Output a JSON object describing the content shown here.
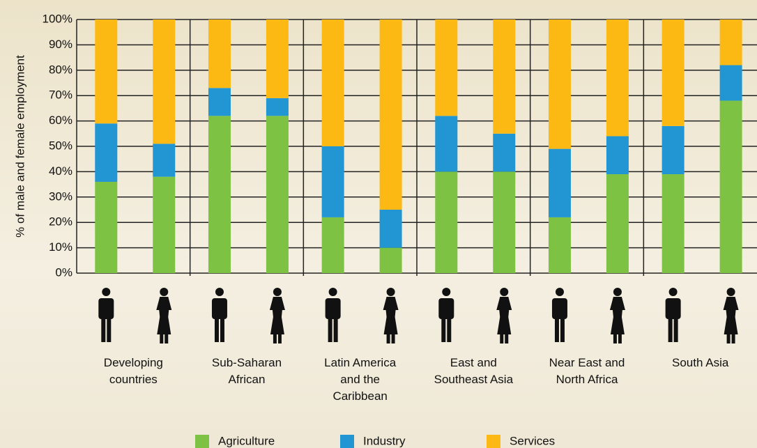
{
  "chart_data": {
    "type": "stacked_bar",
    "y_label": "% of male and female employment",
    "categories": [
      "Developing\ncountries",
      "Sub-Saharan\nAfrican",
      "Latin America\nand the\nCaribbean",
      "East and\nSoutheast Asia",
      "Near East and\nNorth Africa",
      "South Asia"
    ],
    "series": [
      {
        "name": "Agriculture",
        "color": "#7dc242",
        "values": [
          [
            36,
            38
          ],
          [
            62,
            62
          ],
          [
            22,
            10
          ],
          [
            40,
            40
          ],
          [
            22,
            39
          ],
          [
            39,
            68
          ]
        ]
      },
      {
        "name": "Industry",
        "color": "#2196d3",
        "values": [
          [
            23,
            13
          ],
          [
            11,
            7
          ],
          [
            28,
            15
          ],
          [
            22,
            15
          ],
          [
            27,
            15
          ],
          [
            19,
            14
          ]
        ]
      },
      {
        "name": "Services",
        "color": "#fdb913",
        "values": [
          [
            41,
            49
          ],
          [
            27,
            31
          ],
          [
            50,
            75
          ],
          [
            38,
            45
          ],
          [
            51,
            46
          ],
          [
            42,
            18
          ]
        ]
      }
    ],
    "ylim": [
      0,
      100
    ],
    "yticks": [
      {
        "value": 0,
        "label": "0%"
      },
      {
        "value": 10,
        "label": "10%"
      },
      {
        "value": 20,
        "label": "20%"
      },
      {
        "value": 30,
        "label": "30%"
      },
      {
        "value": 40,
        "label": "40%"
      },
      {
        "value": 50,
        "label": "50%"
      },
      {
        "value": 60,
        "label": "60%"
      },
      {
        "value": 70,
        "label": "70%"
      },
      {
        "value": 80,
        "label": "80%"
      },
      {
        "value": 90,
        "label": "90%"
      },
      {
        "value": 100,
        "label": "100%"
      }
    ],
    "grid": true,
    "legend_position": "bottom"
  }
}
